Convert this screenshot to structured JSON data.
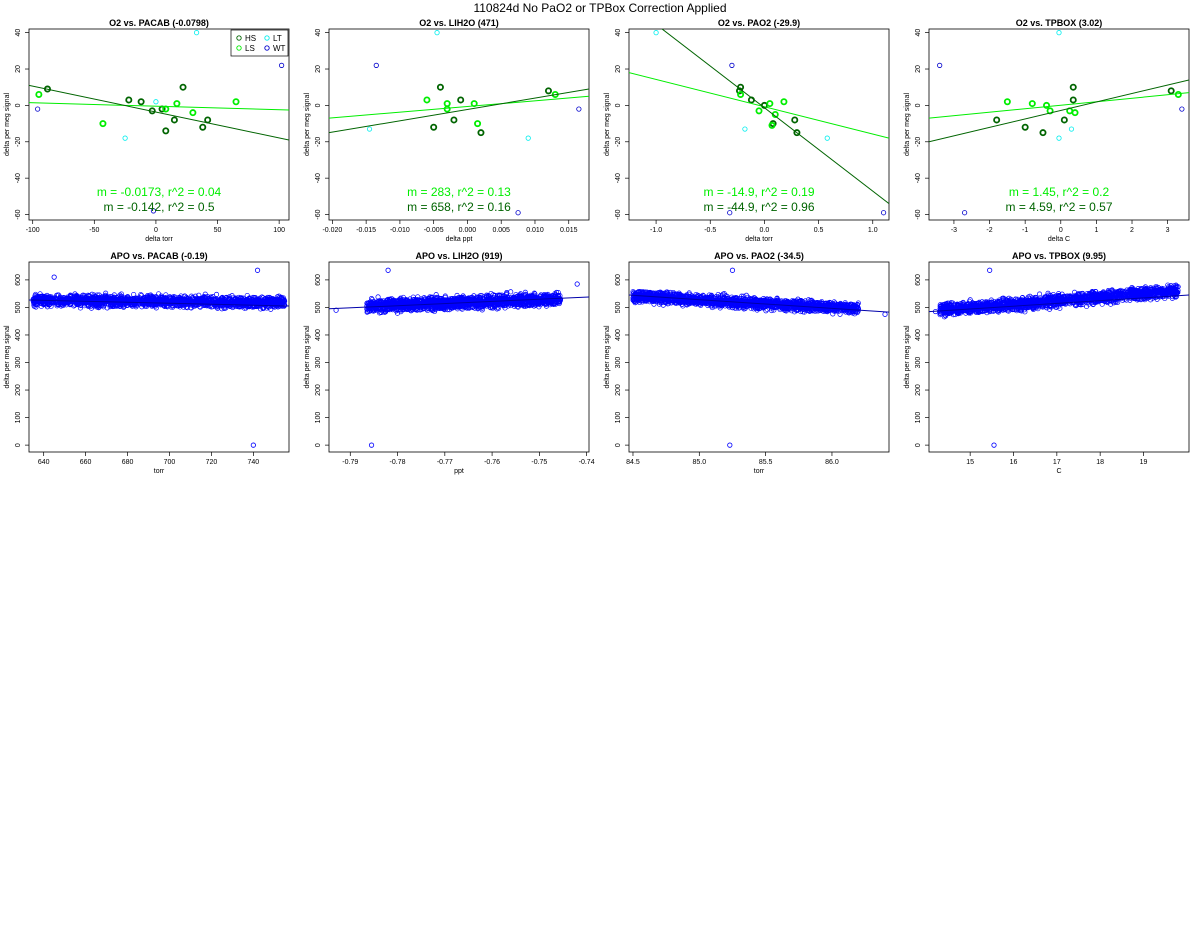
{
  "title": "110824d   No PaO2 or TPBox Correction Applied",
  "colors": {
    "HS": "#006400",
    "LS": "#00ee00",
    "LT": "#00eeee",
    "WT": "#0000cc",
    "fit_HS": "#006400",
    "fit_LS": "#00ee00",
    "scatter": "#0000ff"
  },
  "legend": [
    {
      "label": "HS",
      "color_key": "HS"
    },
    {
      "label": "LT",
      "color_key": "LT"
    },
    {
      "label": "LS",
      "color_key": "LS"
    },
    {
      "label": "WT",
      "color_key": "WT"
    }
  ],
  "chart_data": [
    {
      "type": "scatter",
      "title": "O2 vs. PACAB (-0.0798)",
      "xlabel": "delta torr",
      "ylabel": "delta per meg signal",
      "xlim": [
        -103,
        108
      ],
      "ylim": [
        -63,
        42
      ],
      "xticks": [
        -100,
        -50,
        0,
        50,
        100
      ],
      "yticks": [
        -60,
        -40,
        -20,
        0,
        20,
        40
      ],
      "show_legend": true,
      "series": [
        {
          "group": "HS",
          "points": [
            [
              -88,
              9
            ],
            [
              -22,
              3
            ],
            [
              -12,
              2
            ],
            [
              -3,
              -3
            ],
            [
              5,
              -2
            ],
            [
              15,
              -8
            ],
            [
              22,
              10
            ],
            [
              38,
              -12
            ],
            [
              42,
              -8
            ],
            [
              8,
              -14
            ]
          ]
        },
        {
          "group": "LS",
          "points": [
            [
              -95,
              6
            ],
            [
              -43,
              -10
            ],
            [
              8,
              -2
            ],
            [
              17,
              1
            ],
            [
              30,
              -4
            ],
            [
              65,
              2
            ]
          ]
        },
        {
          "group": "LT",
          "points": [
            [
              -25,
              -18
            ],
            [
              0,
              2
            ],
            [
              33,
              40
            ]
          ]
        },
        {
          "group": "WT",
          "points": [
            [
              -96,
              -2
            ],
            [
              -2,
              -58
            ],
            [
              102,
              22
            ]
          ]
        }
      ],
      "fits": [
        {
          "group": "LS",
          "x": [
            -103,
            108
          ],
          "y": [
            1.5,
            -2.5
          ]
        },
        {
          "group": "HS",
          "x": [
            -103,
            108
          ],
          "y": [
            11,
            -19
          ]
        }
      ],
      "annotations": [
        {
          "text": "m = -0.0173, r^2 = 0.04",
          "color_key": "fit_LS"
        },
        {
          "text": "m = -0.142, r^2 = 0.5",
          "color_key": "fit_HS"
        }
      ]
    },
    {
      "type": "scatter",
      "title": "O2 vs. LIH2O (471)",
      "xlabel": "delta ppt",
      "ylabel": "delta per meg signal",
      "xlim": [
        -0.0205,
        0.018
      ],
      "ylim": [
        -63,
        42
      ],
      "xticks": [
        -0.02,
        -0.015,
        -0.01,
        -0.005,
        0.0,
        0.005,
        0.01,
        0.015
      ],
      "xticklabels": [
        "-0.020",
        "-0.015",
        "-0.010",
        "-0.005",
        "0.000",
        "0.005",
        "0.010",
        "0.015"
      ],
      "yticks": [
        -60,
        -40,
        -20,
        0,
        20,
        40
      ],
      "show_legend": false,
      "series": [
        {
          "group": "HS",
          "points": [
            [
              -0.004,
              10
            ],
            [
              -0.002,
              -8
            ],
            [
              -0.001,
              3
            ],
            [
              -0.005,
              -12
            ],
            [
              0.002,
              -15
            ],
            [
              0.012,
              8
            ]
          ]
        },
        {
          "group": "LS",
          "points": [
            [
              -0.006,
              3
            ],
            [
              -0.003,
              -2
            ],
            [
              0.001,
              1
            ],
            [
              0.0015,
              -10
            ],
            [
              0.013,
              6
            ],
            [
              -0.003,
              1
            ]
          ]
        },
        {
          "group": "LT",
          "points": [
            [
              -0.0045,
              40
            ],
            [
              -0.0145,
              -13
            ],
            [
              0.009,
              -18
            ]
          ]
        },
        {
          "group": "WT",
          "points": [
            [
              -0.0135,
              22
            ],
            [
              0.0075,
              -59
            ],
            [
              0.0165,
              -2
            ]
          ]
        }
      ],
      "fits": [
        {
          "group": "LS",
          "x": [
            -0.0205,
            0.018
          ],
          "y": [
            -7,
            5
          ]
        },
        {
          "group": "HS",
          "x": [
            -0.0205,
            0.018
          ],
          "y": [
            -15,
            9
          ]
        }
      ],
      "annotations": [
        {
          "text": "m = 283, r^2 = 0.13",
          "color_key": "fit_LS"
        },
        {
          "text": "m = 658, r^2 = 0.16",
          "color_key": "fit_HS"
        }
      ]
    },
    {
      "type": "scatter",
      "title": "O2 vs. PAO2 (-29.9)",
      "xlabel": "delta torr",
      "ylabel": "delta per meg signal",
      "xlim": [
        -1.25,
        1.15
      ],
      "ylim": [
        -63,
        42
      ],
      "xticks": [
        -1.0,
        -0.5,
        0.0,
        0.5,
        1.0
      ],
      "xticklabels": [
        "-1.0",
        "-0.5",
        "0.0",
        "0.5",
        "1.0"
      ],
      "yticks": [
        -60,
        -40,
        -20,
        0,
        20,
        40
      ],
      "show_legend": false,
      "series": [
        {
          "group": "HS",
          "points": [
            [
              -0.22,
              10
            ],
            [
              -0.12,
              3
            ],
            [
              0.0,
              0
            ],
            [
              0.08,
              -10
            ],
            [
              0.28,
              -8
            ],
            [
              0.3,
              -15
            ],
            [
              -0.23,
              8
            ]
          ]
        },
        {
          "group": "LS",
          "points": [
            [
              -0.22,
              6
            ],
            [
              -0.05,
              -3
            ],
            [
              0.05,
              1
            ],
            [
              0.1,
              -5
            ],
            [
              0.18,
              2
            ],
            [
              0.07,
              -11
            ]
          ]
        },
        {
          "group": "LT",
          "points": [
            [
              -1.0,
              40
            ],
            [
              -0.18,
              -13
            ],
            [
              0.58,
              -18
            ]
          ]
        },
        {
          "group": "WT",
          "points": [
            [
              -0.3,
              22
            ],
            [
              -0.32,
              -59
            ],
            [
              1.1,
              -59
            ]
          ]
        }
      ],
      "fits": [
        {
          "group": "LS",
          "x": [
            -1.25,
            1.15
          ],
          "y": [
            18,
            -18
          ]
        },
        {
          "group": "HS",
          "x": [
            -1.25,
            1.15
          ],
          "y": [
            56,
            -54
          ]
        }
      ],
      "annotations": [
        {
          "text": "m = -14.9, r^2 = 0.19",
          "color_key": "fit_LS"
        },
        {
          "text": "m = -44.9, r^2 = 0.96",
          "color_key": "fit_HS"
        }
      ]
    },
    {
      "type": "scatter",
      "title": "O2 vs. TPBOX (3.02)",
      "xlabel": "delta C",
      "ylabel": "delta per meg signal",
      "xlim": [
        -3.7,
        3.6
      ],
      "ylim": [
        -63,
        42
      ],
      "xticks": [
        -3,
        -2,
        -1,
        0,
        1,
        2,
        3
      ],
      "yticks": [
        -60,
        -40,
        -20,
        0,
        20,
        40
      ],
      "show_legend": false,
      "series": [
        {
          "group": "HS",
          "points": [
            [
              -1.8,
              -8
            ],
            [
              -1.0,
              -12
            ],
            [
              -0.5,
              -15
            ],
            [
              0.1,
              -8
            ],
            [
              0.35,
              3
            ],
            [
              0.35,
              10
            ],
            [
              3.1,
              8
            ]
          ]
        },
        {
          "group": "LS",
          "points": [
            [
              -1.5,
              2
            ],
            [
              -0.3,
              -3
            ],
            [
              -0.4,
              0
            ],
            [
              0.25,
              -3
            ],
            [
              0.4,
              -4
            ],
            [
              3.3,
              6
            ],
            [
              -0.8,
              1
            ]
          ]
        },
        {
          "group": "LT",
          "points": [
            [
              -0.05,
              40
            ],
            [
              -0.05,
              -18
            ],
            [
              0.3,
              -13
            ]
          ]
        },
        {
          "group": "WT",
          "points": [
            [
              -3.4,
              22
            ],
            [
              -2.7,
              -59
            ],
            [
              3.4,
              -2
            ]
          ]
        }
      ],
      "fits": [
        {
          "group": "LS",
          "x": [
            -3.7,
            3.6
          ],
          "y": [
            -7,
            7
          ]
        },
        {
          "group": "HS",
          "x": [
            -3.7,
            3.6
          ],
          "y": [
            -20,
            14
          ]
        }
      ],
      "annotations": [
        {
          "text": "m = 1.45, r^2 = 0.2",
          "color_key": "fit_LS"
        },
        {
          "text": "m = 4.59, r^2 = 0.57",
          "color_key": "fit_HS"
        }
      ]
    },
    {
      "type": "scatter",
      "title": "APO vs. PACAB (-0.19)",
      "xlabel": "torr",
      "ylabel": "delta per meg signal",
      "xlim": [
        633,
        757
      ],
      "ylim": [
        -25,
        665
      ],
      "xticks": [
        640,
        660,
        680,
        700,
        720,
        740
      ],
      "yticks": [
        0,
        100,
        200,
        300,
        400,
        500,
        600
      ],
      "show_legend": false,
      "dense_cloud": {
        "x_min": 635,
        "x_max": 755,
        "center_start": 525,
        "center_end": 518,
        "spread": 20,
        "count": 1800
      },
      "series": [
        {
          "group": "scatter",
          "points": [
            [
              740,
              0
            ],
            [
              742,
              635
            ],
            [
              645,
              610
            ]
          ]
        }
      ],
      "fits": [
        {
          "group": "WT",
          "x": [
            633,
            757
          ],
          "y": [
            527,
            505
          ]
        }
      ]
    },
    {
      "type": "scatter",
      "title": "APO vs. LIH2O (919)",
      "xlabel": "ppt",
      "ylabel": "delta per meg signal",
      "xlim": [
        -0.7945,
        -0.7395
      ],
      "ylim": [
        -25,
        665
      ],
      "xticks": [
        -0.79,
        -0.78,
        -0.77,
        -0.76,
        -0.75,
        -0.74
      ],
      "xticklabels": [
        "-0.79",
        "-0.78",
        "-0.77",
        "-0.76",
        "-0.75",
        "-0.74"
      ],
      "yticks": [
        0,
        100,
        200,
        300,
        400,
        500,
        600
      ],
      "show_legend": false,
      "dense_cloud": {
        "x_min": -0.7865,
        "x_max": -0.7455,
        "center_start": 505,
        "center_end": 530,
        "spread": 22,
        "count": 1800
      },
      "series": [
        {
          "group": "scatter",
          "points": [
            [
              -0.7855,
              0
            ],
            [
              -0.782,
              635
            ],
            [
              -0.793,
              490
            ],
            [
              -0.742,
              585
            ]
          ]
        }
      ],
      "fits": [
        {
          "group": "WT",
          "x": [
            -0.7945,
            -0.7395
          ],
          "y": [
            495,
            538
          ]
        }
      ]
    },
    {
      "type": "scatter",
      "title": "APO vs. PAO2 (-34.5)",
      "xlabel": "torr",
      "ylabel": "delta per meg signal",
      "xlim": [
        84.47,
        86.43
      ],
      "ylim": [
        -25,
        665
      ],
      "xticks": [
        84.5,
        85.0,
        85.5,
        86.0
      ],
      "xticklabels": [
        "84.5",
        "85.0",
        "85.5",
        "86.0"
      ],
      "yticks": [
        0,
        100,
        200,
        300,
        400,
        500,
        600
      ],
      "show_legend": false,
      "dense_cloud": {
        "x_min": 84.5,
        "x_max": 86.2,
        "center_start": 540,
        "center_end": 495,
        "spread": 20,
        "count": 1800
      },
      "series": [
        {
          "group": "scatter",
          "points": [
            [
              85.23,
              0
            ],
            [
              85.25,
              635
            ],
            [
              86.4,
              475
            ]
          ]
        }
      ],
      "fits": [
        {
          "group": "WT",
          "x": [
            84.47,
            86.43
          ],
          "y": [
            545,
            483
          ]
        }
      ]
    },
    {
      "type": "scatter",
      "title": "APO vs. TPBOX (9.95)",
      "xlabel": "C",
      "ylabel": "delta per meg signal",
      "xlim": [
        14.05,
        20.05
      ],
      "ylim": [
        -25,
        665
      ],
      "xticks": [
        15,
        16,
        17,
        18,
        19
      ],
      "yticks": [
        0,
        100,
        200,
        300,
        400,
        500,
        600
      ],
      "show_legend": false,
      "dense_cloud": {
        "x_min": 14.3,
        "x_max": 19.8,
        "center_start": 490,
        "center_end": 560,
        "spread": 22,
        "count": 1800
      },
      "series": [
        {
          "group": "scatter",
          "points": [
            [
              15.55,
              0
            ],
            [
              15.45,
              635
            ],
            [
              14.2,
              485
            ]
          ]
        }
      ],
      "fits": [
        {
          "group": "WT",
          "x": [
            14.05,
            20.05
          ],
          "y": [
            485,
            545
          ]
        }
      ]
    }
  ]
}
